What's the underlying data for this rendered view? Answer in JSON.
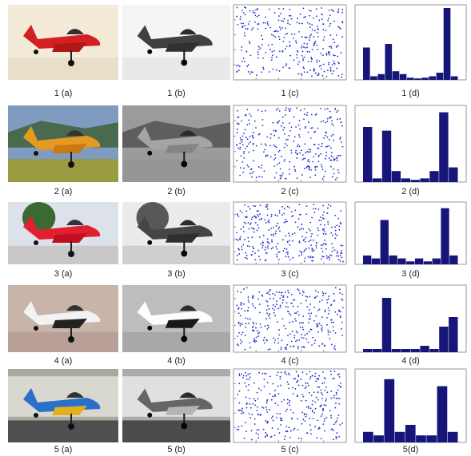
{
  "figure": {
    "rows": [
      {
        "captions": [
          "1 (a)",
          "1 (b)",
          "1 (c)",
          "1 (d)"
        ],
        "histogram": {
          "values": [
            45,
            5,
            8,
            50,
            12,
            8,
            3,
            2,
            3,
            5,
            10,
            100,
            5
          ],
          "ylim": [
            0,
            100
          ]
        }
      },
      {
        "captions": [
          "2 (a)",
          "2 (b)",
          "2 (c)",
          "2 (d)"
        ],
        "histogram": {
          "values": [
            75,
            5,
            70,
            15,
            5,
            3,
            5,
            15,
            95,
            20
          ],
          "ylim": [
            0,
            100
          ]
        }
      },
      {
        "captions": [
          "3 (a)",
          "3 (b)",
          "3 (c)",
          "3 (d)"
        ],
        "histogram": {
          "values": [
            15,
            10,
            75,
            15,
            10,
            5,
            10,
            5,
            10,
            95,
            15
          ],
          "ylim": [
            0,
            100
          ]
        }
      },
      {
        "captions": [
          "4 (a)",
          "4 (b)",
          "4 (c)",
          "4 (d)"
        ],
        "histogram": {
          "values": [
            5,
            5,
            85,
            5,
            5,
            5,
            10,
            5,
            40,
            55
          ],
          "ylim": [
            0,
            100
          ]
        }
      },
      {
        "captions": [
          "5 (a)",
          "5 (b)",
          "5 (c)",
          "5(d)"
        ],
        "histogram": {
          "values": [
            15,
            10,
            90,
            15,
            25,
            10,
            10,
            80,
            15
          ],
          "ylim": [
            0,
            100
          ]
        }
      }
    ]
  }
}
